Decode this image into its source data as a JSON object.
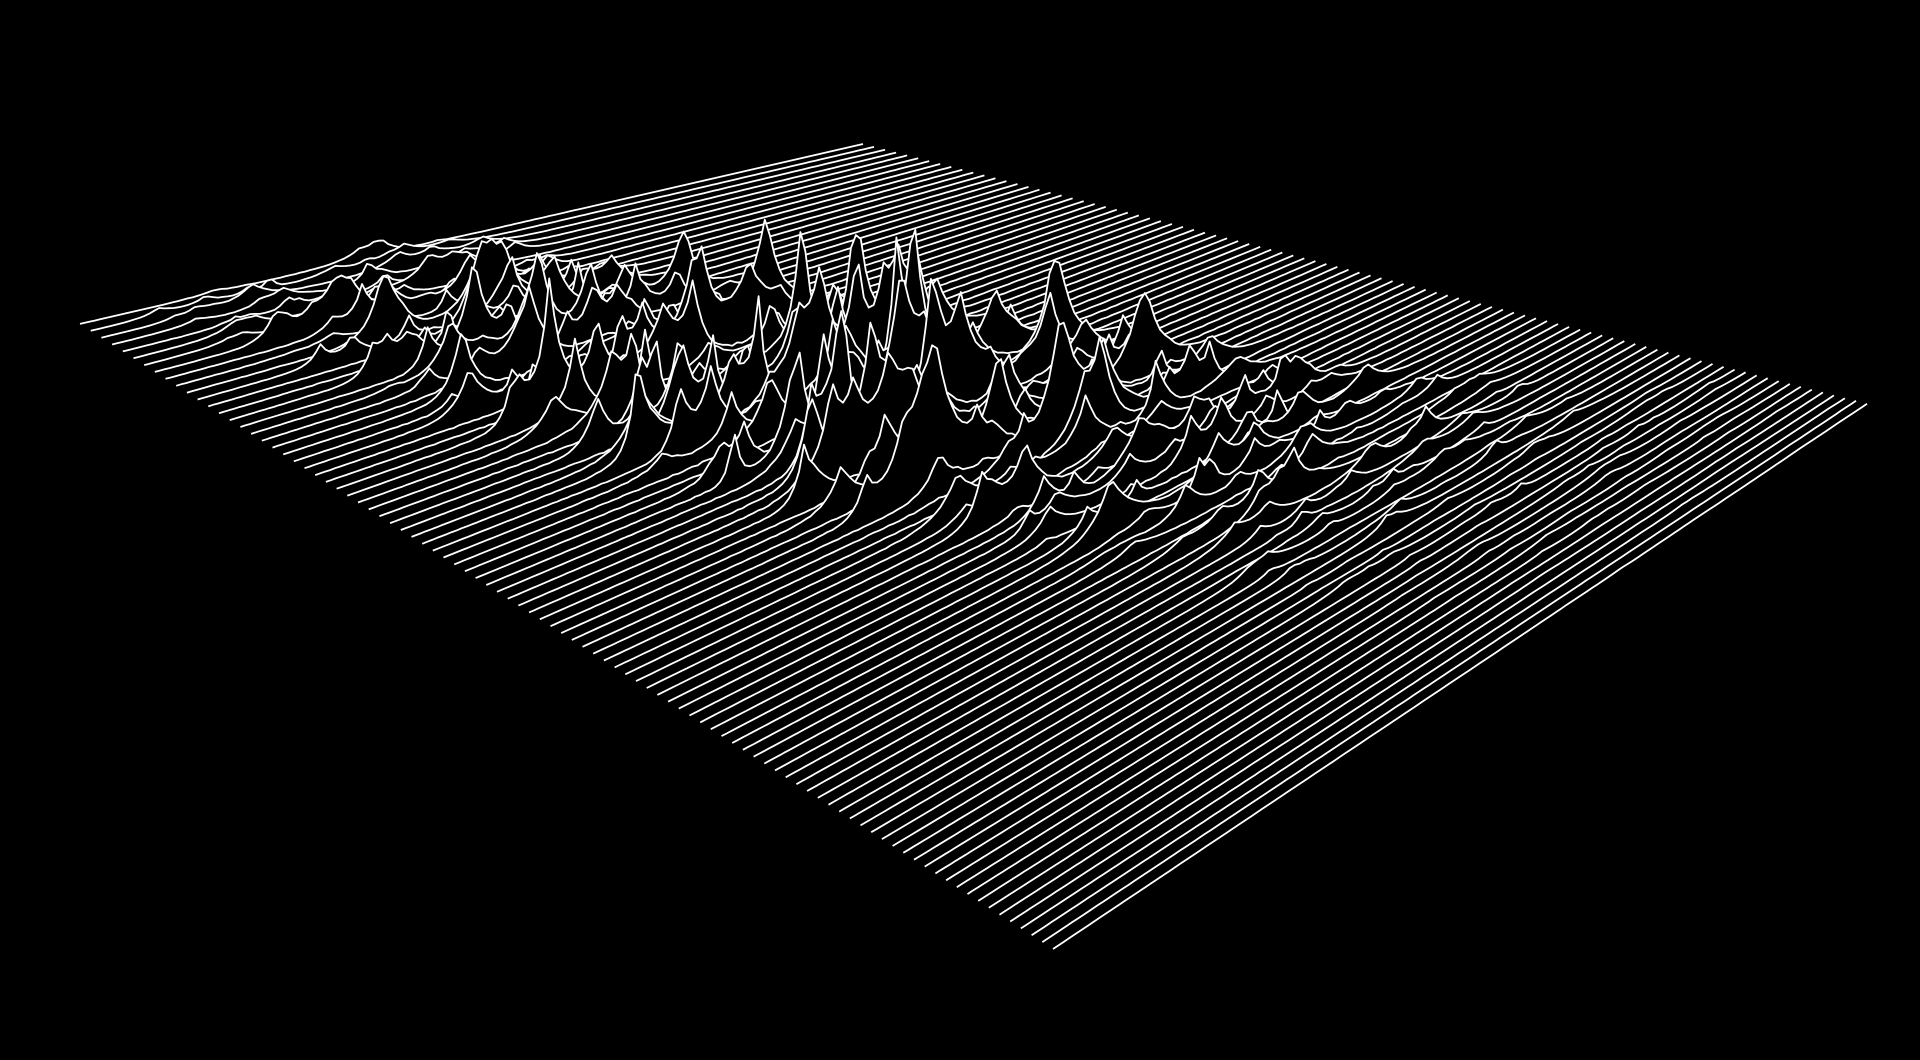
{
  "colors": {
    "background": "#000000",
    "line": "#ffffff"
  }
}
